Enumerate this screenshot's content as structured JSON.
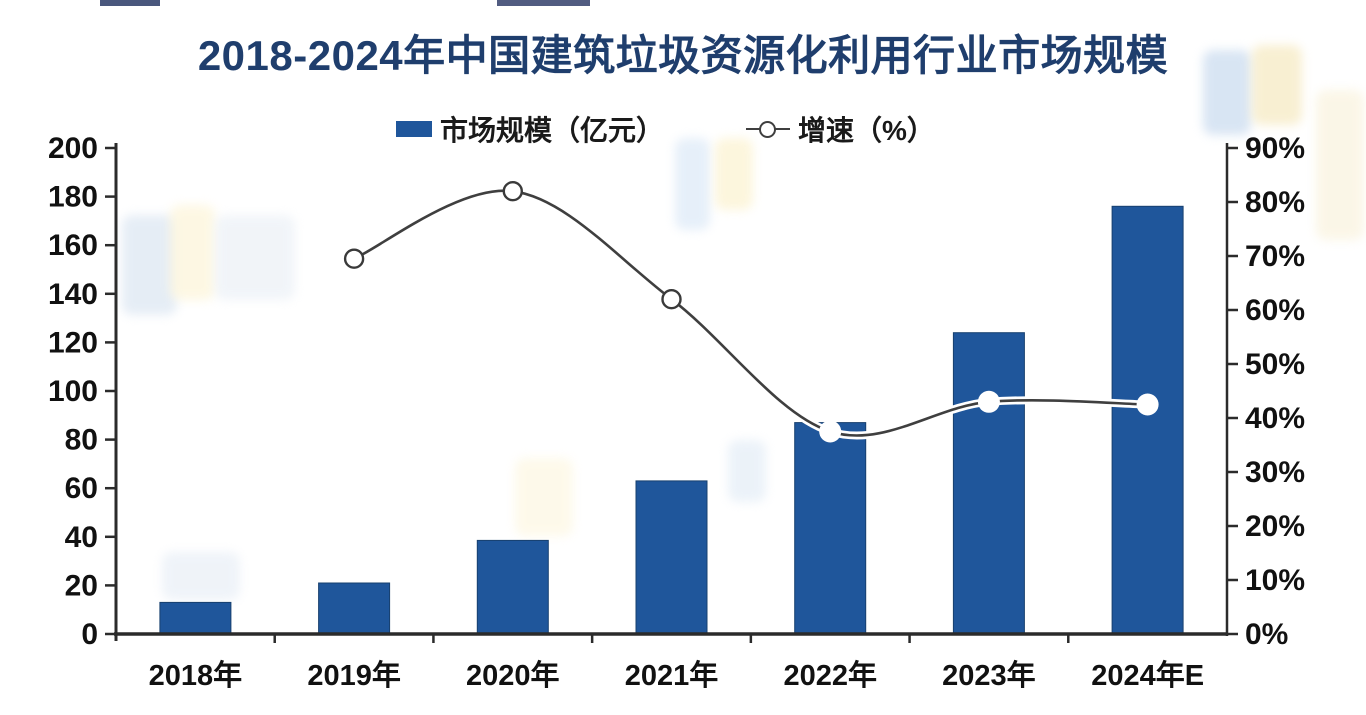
{
  "header": {
    "title": "2018-2024年中国建筑垃圾资源化利用行业市场规模"
  },
  "legend": {
    "bar_label": "市场规模（亿元）",
    "line_label": "增速（%）"
  },
  "chart_data": {
    "type": "combo-bar-line",
    "title": "2018-2024年中国建筑垃圾资源化利用行业市场规模",
    "categories": [
      "2018年",
      "2019年",
      "2020年",
      "2021年",
      "2022年",
      "2023年",
      "2024年E"
    ],
    "series": [
      {
        "name": "市场规模（亿元）",
        "kind": "bar",
        "axis": "left",
        "color": "#1f569b",
        "values": [
          13,
          21,
          38.5,
          63,
          87,
          124,
          176
        ]
      },
      {
        "name": "增速（%）",
        "kind": "line",
        "axis": "right",
        "color": "#3f3f3f",
        "values": [
          null,
          69.5,
          82,
          62,
          37.5,
          43,
          42.5
        ],
        "markers": [
          null,
          "open",
          "open",
          "open",
          "solid-white",
          "solid-white",
          "solid-white"
        ]
      }
    ],
    "left_axis": {
      "min": 0,
      "max": 200,
      "step": 20,
      "tick_labels": [
        "0",
        "20",
        "40",
        "60",
        "80",
        "100",
        "120",
        "140",
        "160",
        "180",
        "200"
      ]
    },
    "right_axis": {
      "min": 0,
      "max": 90,
      "step": 10,
      "tick_labels": [
        "0%",
        "10%",
        "20%",
        "30%",
        "40%",
        "50%",
        "60%",
        "70%",
        "80%",
        "90%"
      ]
    },
    "grid": false,
    "legend_position": "top-center",
    "background": "#ffffff",
    "colors": {
      "bar": "#1f569b",
      "line": "#3f3f3f",
      "marker_fill": "#ffffff",
      "title": "#1f3e6d",
      "axis": "#2b2b2b"
    }
  }
}
